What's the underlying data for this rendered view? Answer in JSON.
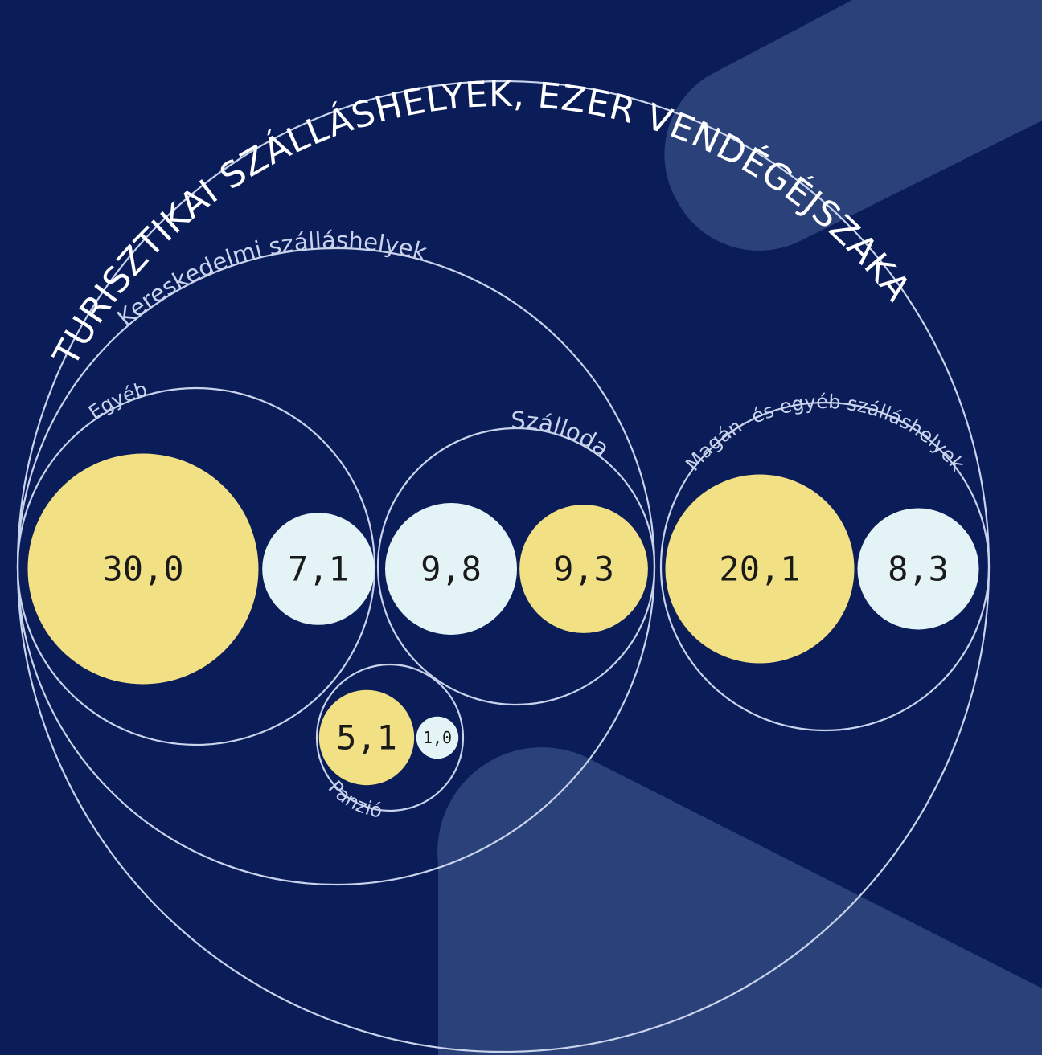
{
  "chart_data": {
    "type": "bubble",
    "title": "TURISZTIKAI SZÁLLÁSHELYEK, EZER VENDÉGÉJSZAKA",
    "colors": {
      "background": "#0b1d59",
      "background_shape": "#2b4179",
      "outline": "#c9d3ec",
      "yellow": "#f2e084",
      "pale": "#e4f4f6"
    },
    "groups": [
      {
        "label": "Kereskedelmi szálláshelyek"
      },
      {
        "label": "Egyéb"
      },
      {
        "label": "Szálloda"
      },
      {
        "label": "Panzió"
      },
      {
        "label": "Magán- és egyéb szálláshelyek"
      }
    ],
    "bubbles": [
      {
        "group": "Egyéb",
        "label": "30,0",
        "value": 30.0,
        "color": "#f2e084"
      },
      {
        "group": "Egyéb",
        "label": "7,1",
        "value": 7.1,
        "color": "#e4f4f6"
      },
      {
        "group": "Szálloda",
        "label": "9,8",
        "value": 9.8,
        "color": "#e4f4f6"
      },
      {
        "group": "Szálloda",
        "label": "9,3",
        "value": 9.3,
        "color": "#f2e084"
      },
      {
        "group": "Panzió",
        "label": "5,1",
        "value": 5.1,
        "color": "#f2e084"
      },
      {
        "group": "Panzió",
        "label": "1,0",
        "value": 1.0,
        "color": "#e4f4f6"
      },
      {
        "group": "Magán- és egyéb szálláshelyek",
        "label": "20,1",
        "value": 20.1,
        "color": "#f2e084"
      },
      {
        "group": "Magán- és egyéb szálláshelyek",
        "label": "8,3",
        "value": 8.3,
        "color": "#e4f4f6"
      }
    ]
  }
}
